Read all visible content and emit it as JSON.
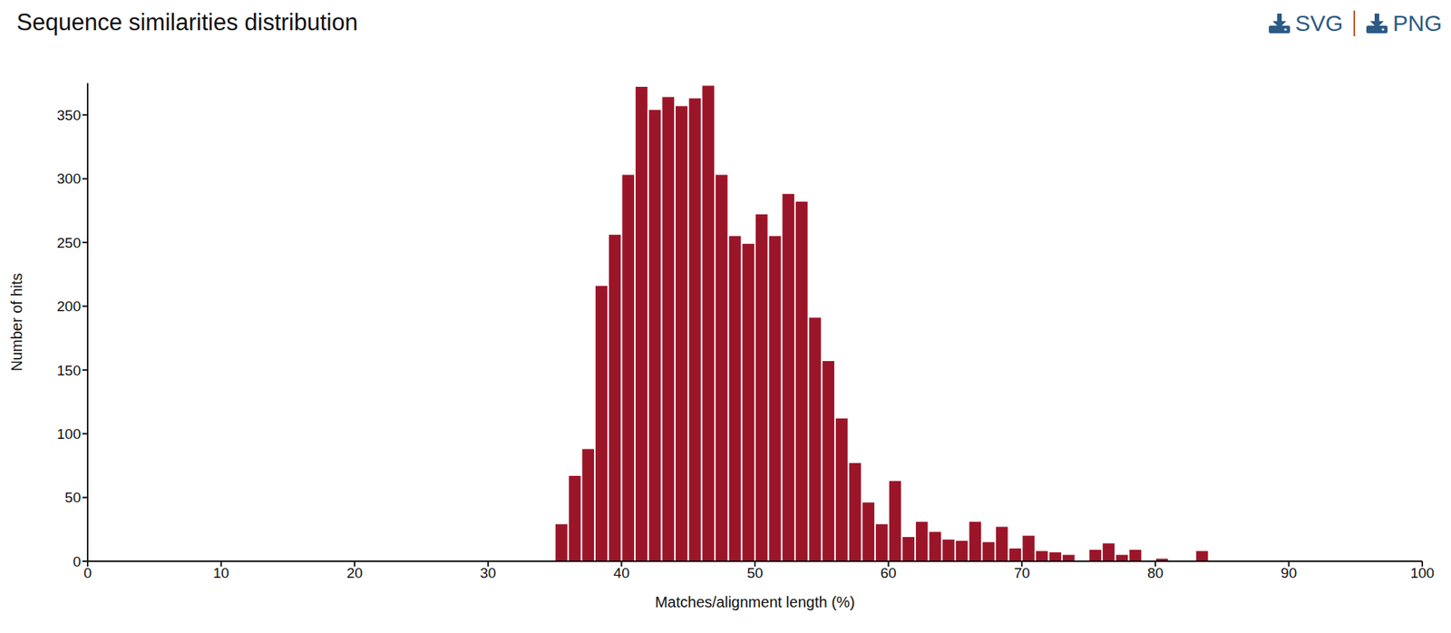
{
  "chart_data": {
    "type": "histogram",
    "title": "Sequence similarities distribution",
    "annotations": [
      "SVG",
      "PNG"
    ],
    "x_label": "Matches/alignment length (%)",
    "y_label": "Number of hits",
    "bins": [
      35,
      36,
      37,
      38,
      39,
      40,
      41,
      42,
      43,
      44,
      45,
      46,
      47,
      48,
      49,
      50,
      51,
      52,
      53,
      54,
      55,
      56,
      57,
      58,
      59,
      60,
      61,
      62,
      63,
      64,
      65,
      66,
      67,
      68,
      69,
      70,
      71,
      72,
      73,
      74,
      75,
      76,
      77,
      78,
      79,
      80,
      81,
      82,
      83,
      84
    ],
    "values": [
      29,
      67,
      88,
      216,
      256,
      303,
      372,
      354,
      364,
      357,
      363,
      373,
      303,
      255,
      249,
      272,
      255,
      288,
      282,
      191,
      157,
      112,
      77,
      46,
      29,
      63,
      19,
      31,
      23,
      17,
      16,
      31,
      15,
      27,
      10,
      20,
      8,
      7,
      5,
      0,
      9,
      14,
      5,
      9,
      0,
      2,
      0,
      0,
      8
    ],
    "color": "#9b1529",
    "xlim": [
      0,
      100
    ],
    "xticks": [
      0,
      10,
      20,
      30,
      40,
      50,
      60,
      70,
      80,
      90,
      100
    ],
    "ylim": [
      0,
      375
    ],
    "yticks": [
      0,
      50,
      100,
      150,
      200,
      250,
      300,
      350
    ],
    "grid": false
  }
}
